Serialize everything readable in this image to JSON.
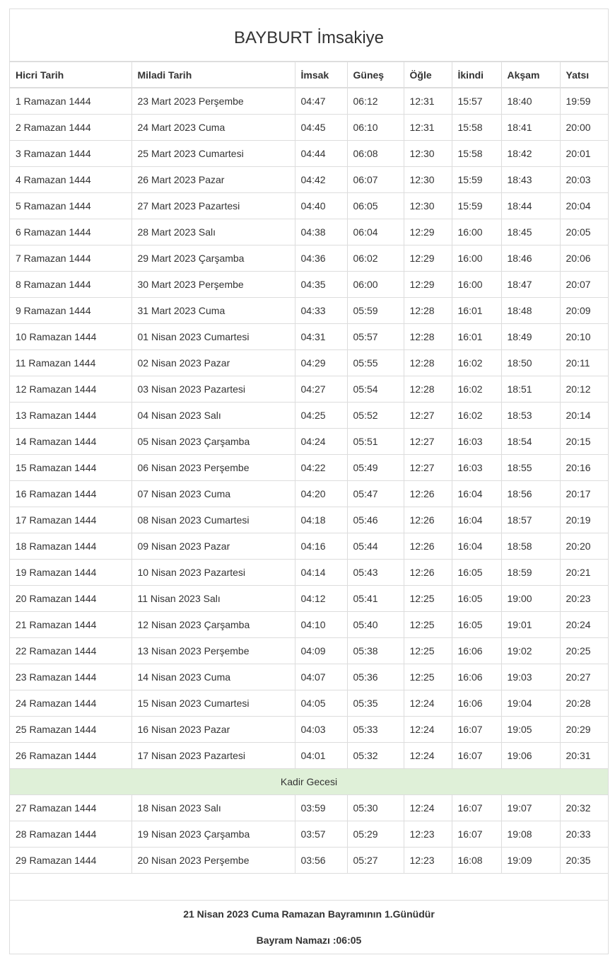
{
  "title": "BAYBURT İmsakiye",
  "columns": [
    "Hicri Tarih",
    "Miladi Tarih",
    "İmsak",
    "Güneş",
    "Öğle",
    "İkindi",
    "Akşam",
    "Yatsı"
  ],
  "rows_before": [
    [
      "1 Ramazan 1444",
      "23 Mart 2023 Perşembe",
      "04:47",
      "06:12",
      "12:31",
      "15:57",
      "18:40",
      "19:59"
    ],
    [
      "2 Ramazan 1444",
      "24 Mart 2023 Cuma",
      "04:45",
      "06:10",
      "12:31",
      "15:58",
      "18:41",
      "20:00"
    ],
    [
      "3 Ramazan 1444",
      "25 Mart 2023 Cumartesi",
      "04:44",
      "06:08",
      "12:30",
      "15:58",
      "18:42",
      "20:01"
    ],
    [
      "4 Ramazan 1444",
      "26 Mart 2023 Pazar",
      "04:42",
      "06:07",
      "12:30",
      "15:59",
      "18:43",
      "20:03"
    ],
    [
      "5 Ramazan 1444",
      "27 Mart 2023 Pazartesi",
      "04:40",
      "06:05",
      "12:30",
      "15:59",
      "18:44",
      "20:04"
    ],
    [
      "6 Ramazan 1444",
      "28 Mart 2023 Salı",
      "04:38",
      "06:04",
      "12:29",
      "16:00",
      "18:45",
      "20:05"
    ],
    [
      "7 Ramazan 1444",
      "29 Mart 2023 Çarşamba",
      "04:36",
      "06:02",
      "12:29",
      "16:00",
      "18:46",
      "20:06"
    ],
    [
      "8 Ramazan 1444",
      "30 Mart 2023 Perşembe",
      "04:35",
      "06:00",
      "12:29",
      "16:00",
      "18:47",
      "20:07"
    ],
    [
      "9 Ramazan 1444",
      "31 Mart 2023 Cuma",
      "04:33",
      "05:59",
      "12:28",
      "16:01",
      "18:48",
      "20:09"
    ],
    [
      "10 Ramazan 1444",
      "01 Nisan 2023 Cumartesi",
      "04:31",
      "05:57",
      "12:28",
      "16:01",
      "18:49",
      "20:10"
    ],
    [
      "11 Ramazan 1444",
      "02 Nisan 2023 Pazar",
      "04:29",
      "05:55",
      "12:28",
      "16:02",
      "18:50",
      "20:11"
    ],
    [
      "12 Ramazan 1444",
      "03 Nisan 2023 Pazartesi",
      "04:27",
      "05:54",
      "12:28",
      "16:02",
      "18:51",
      "20:12"
    ],
    [
      "13 Ramazan 1444",
      "04 Nisan 2023 Salı",
      "04:25",
      "05:52",
      "12:27",
      "16:02",
      "18:53",
      "20:14"
    ],
    [
      "14 Ramazan 1444",
      "05 Nisan 2023 Çarşamba",
      "04:24",
      "05:51",
      "12:27",
      "16:03",
      "18:54",
      "20:15"
    ],
    [
      "15 Ramazan 1444",
      "06 Nisan 2023 Perşembe",
      "04:22",
      "05:49",
      "12:27",
      "16:03",
      "18:55",
      "20:16"
    ],
    [
      "16 Ramazan 1444",
      "07 Nisan 2023 Cuma",
      "04:20",
      "05:47",
      "12:26",
      "16:04",
      "18:56",
      "20:17"
    ],
    [
      "17 Ramazan 1444",
      "08 Nisan 2023 Cumartesi",
      "04:18",
      "05:46",
      "12:26",
      "16:04",
      "18:57",
      "20:19"
    ],
    [
      "18 Ramazan 1444",
      "09 Nisan 2023 Pazar",
      "04:16",
      "05:44",
      "12:26",
      "16:04",
      "18:58",
      "20:20"
    ],
    [
      "19 Ramazan 1444",
      "10 Nisan 2023 Pazartesi",
      "04:14",
      "05:43",
      "12:26",
      "16:05",
      "18:59",
      "20:21"
    ],
    [
      "20 Ramazan 1444",
      "11 Nisan 2023 Salı",
      "04:12",
      "05:41",
      "12:25",
      "16:05",
      "19:00",
      "20:23"
    ],
    [
      "21 Ramazan 1444",
      "12 Nisan 2023 Çarşamba",
      "04:10",
      "05:40",
      "12:25",
      "16:05",
      "19:01",
      "20:24"
    ],
    [
      "22 Ramazan 1444",
      "13 Nisan 2023 Perşembe",
      "04:09",
      "05:38",
      "12:25",
      "16:06",
      "19:02",
      "20:25"
    ],
    [
      "23 Ramazan 1444",
      "14 Nisan 2023 Cuma",
      "04:07",
      "05:36",
      "12:25",
      "16:06",
      "19:03",
      "20:27"
    ],
    [
      "24 Ramazan 1444",
      "15 Nisan 2023 Cumartesi",
      "04:05",
      "05:35",
      "12:24",
      "16:06",
      "19:04",
      "20:28"
    ],
    [
      "25 Ramazan 1444",
      "16 Nisan 2023 Pazar",
      "04:03",
      "05:33",
      "12:24",
      "16:07",
      "19:05",
      "20:29"
    ],
    [
      "26 Ramazan 1444",
      "17 Nisan 2023 Pazartesi",
      "04:01",
      "05:32",
      "12:24",
      "16:07",
      "19:06",
      "20:31"
    ]
  ],
  "special_row": {
    "label": "Kadir Gecesi",
    "color": "#dff0d8"
  },
  "rows_after": [
    [
      "27 Ramazan 1444",
      "18 Nisan 2023 Salı",
      "03:59",
      "05:30",
      "12:24",
      "16:07",
      "19:07",
      "20:32"
    ],
    [
      "28 Ramazan 1444",
      "19 Nisan 2023 Çarşamba",
      "03:57",
      "05:29",
      "12:23",
      "16:07",
      "19:08",
      "20:33"
    ],
    [
      "29 Ramazan 1444",
      "20 Nisan 2023 Perşembe",
      "03:56",
      "05:27",
      "12:23",
      "16:08",
      "19:09",
      "20:35"
    ]
  ],
  "footer": {
    "bayram_note": "21 Nisan 2023 Cuma Ramazan Bayramının 1.Günüdür",
    "bayram_namazi": "Bayram Namazı :06:05"
  }
}
